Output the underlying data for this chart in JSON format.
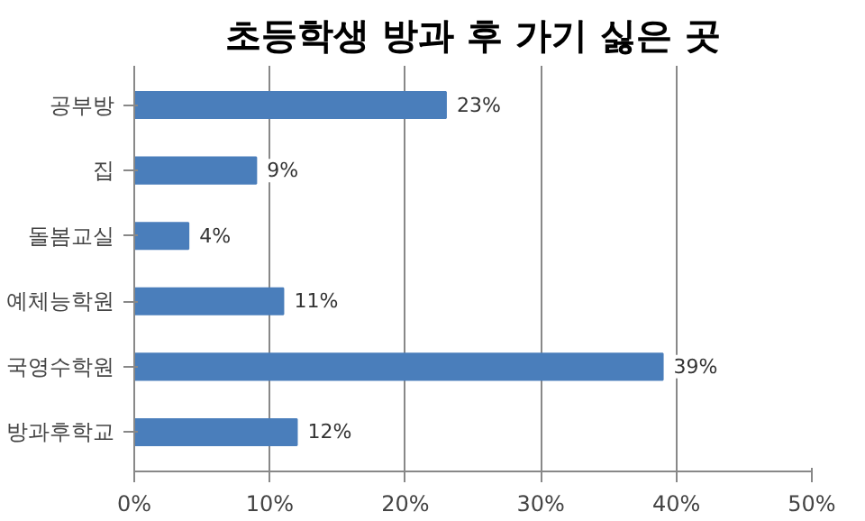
{
  "chart_data": {
    "type": "bar",
    "orientation": "horizontal",
    "title": "초등학생 방과 후 가기 싫은 곳",
    "categories": [
      "공부방",
      "집",
      "돌봄교실",
      "예체능학원",
      "국영수학원",
      "방과후학교"
    ],
    "values": [
      23,
      9,
      4,
      11,
      39,
      12
    ],
    "value_labels": [
      "23%",
      "9%",
      "4%",
      "11%",
      "39%",
      "12%"
    ],
    "color": "#4a7ebb",
    "xlim": [
      0,
      50
    ],
    "xticks": [
      {
        "value": 0,
        "label": "0%"
      },
      {
        "value": 10,
        "label": "10%"
      },
      {
        "value": 20,
        "label": "20%"
      },
      {
        "value": 30,
        "label": "30%"
      },
      {
        "value": 40,
        "label": "40%"
      },
      {
        "value": 50,
        "label": "50%"
      }
    ],
    "grid": "x"
  }
}
